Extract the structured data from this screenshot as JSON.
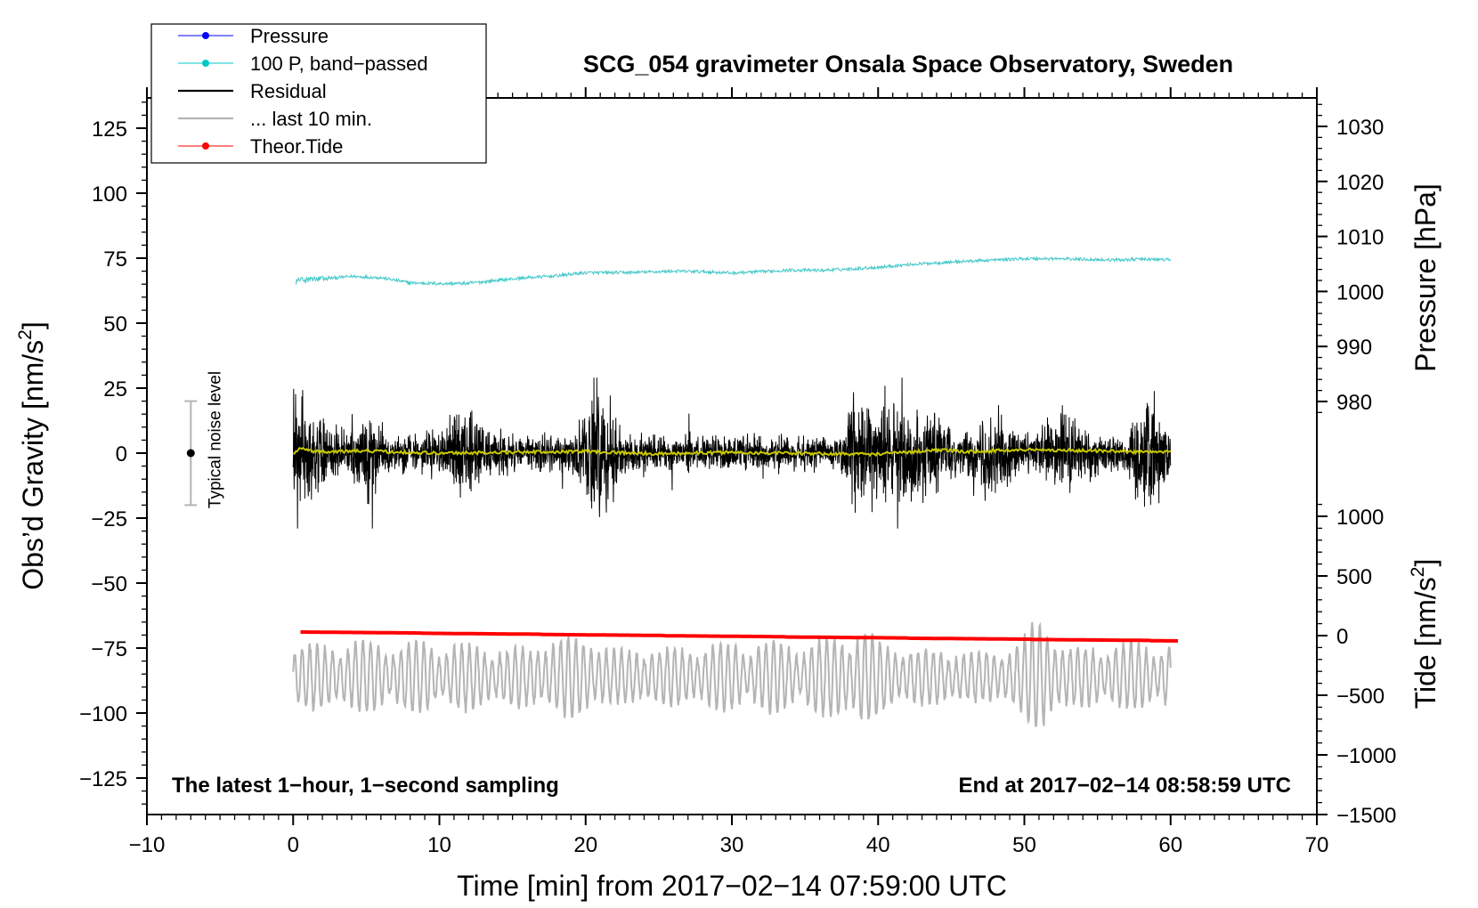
{
  "chart_data": {
    "type": "line",
    "title": "SCG_054 gravimeter Onsala Space Observatory, Sweden",
    "xlabel": "Time [min] from 2017−02−14 07:59:00 UTC",
    "ylabel_left": "Obs’d Gravity [nm/s",
    "ylabel_left_sup": "2",
    "ylabel_left_end": "]",
    "ylabel_right_pressure": "Pressure [hPa]",
    "ylabel_right_tide": "Tide [nm/s",
    "ylabel_right_tide_sup": "2",
    "ylabel_right_tide_end": "]",
    "xlim": [
      -10,
      70
    ],
    "ylim_left": [
      -140,
      140
    ],
    "pressure_range": [
      975,
      1035
    ],
    "tide_range": [
      -1500,
      1500
    ],
    "x_ticks": [
      -10,
      0,
      10,
      20,
      30,
      40,
      50,
      60,
      70
    ],
    "x_tick_labels": [
      "−10",
      "0",
      "10",
      "20",
      "30",
      "40",
      "50",
      "60",
      "70"
    ],
    "y_left_ticks": [
      125,
      100,
      75,
      50,
      25,
      0,
      -25,
      -50,
      -75,
      -100,
      -125
    ],
    "y_left_tick_labels": [
      "125",
      "100",
      "75",
      "50",
      "25",
      "0",
      "−25",
      "−50",
      "−75",
      "−100",
      "−125"
    ],
    "pressure_ticks": [
      1030,
      1020,
      1010,
      1000,
      990,
      980
    ],
    "pressure_tick_labels": [
      "1030",
      "1020",
      "1010",
      "1000",
      "990",
      "980"
    ],
    "tide_ticks": [
      1000,
      500,
      0,
      -500,
      -1000,
      -1500
    ],
    "tide_tick_labels": [
      "1000",
      "500",
      "0",
      "−500",
      "−1000",
      "−1500"
    ],
    "legend": [
      {
        "label": "Pressure",
        "color": "#0000ff",
        "marker": true
      },
      {
        "label": "100 P, band−passed",
        "color": "#00c8c8",
        "marker": true
      },
      {
        "label": "Residual",
        "color": "#000000",
        "marker": false
      },
      {
        "label": "... last 10 min.",
        "color": "#b4b4b4",
        "marker": false
      },
      {
        "label": "Theor.Tide",
        "color": "#ff0000",
        "marker": true
      }
    ],
    "annotation_left": "The latest 1−hour, 1−second sampling",
    "annotation_right": "End at 2017−02−14 08:58:59 UTC",
    "noise_label": "Typical noise level",
    "noise_level": {
      "x": -7,
      "center": 0,
      "low": -20,
      "high": 20
    },
    "series": [
      {
        "name": "100 P, band-passed",
        "color": "#40c8c8",
        "x_range": [
          0.2,
          60
        ],
        "points": [
          [
            0.2,
            66.5
          ],
          [
            2,
            67
          ],
          [
            4,
            68
          ],
          [
            6,
            67.5
          ],
          [
            8,
            65.5
          ],
          [
            10,
            65.2
          ],
          [
            12,
            65.3
          ],
          [
            14,
            66.5
          ],
          [
            16,
            67.5
          ],
          [
            18,
            68.2
          ],
          [
            20,
            69.4
          ],
          [
            22,
            69.4
          ],
          [
            24,
            69.6
          ],
          [
            26,
            70.0
          ],
          [
            28,
            69.8
          ],
          [
            30,
            69.3
          ],
          [
            32,
            69.8
          ],
          [
            34,
            70.4
          ],
          [
            36,
            70.3
          ],
          [
            38,
            70.8
          ],
          [
            40,
            71.5
          ],
          [
            42,
            72.5
          ],
          [
            44,
            73.2
          ],
          [
            46,
            73.8
          ],
          [
            48,
            74.3
          ],
          [
            50,
            74.8
          ],
          [
            52,
            74.8
          ],
          [
            54,
            74.6
          ],
          [
            56,
            74.3
          ],
          [
            58,
            74.6
          ],
          [
            60,
            74.4
          ]
        ],
        "noise_amplitude": 0.6
      },
      {
        "name": "Residual",
        "color": "#000000",
        "x_range": [
          0,
          60
        ],
        "base_amplitude": 7,
        "bursts": [
          [
            0.7,
            1.6,
            2.3
          ],
          [
            5,
            1.3,
            1.4
          ],
          [
            12,
            1.6,
            1.4
          ],
          [
            20.6,
            0.9,
            2.8
          ],
          [
            21.8,
            0.6,
            1.6
          ],
          [
            38.8,
            1.0,
            2.3
          ],
          [
            40.8,
            1.1,
            1.7
          ],
          [
            43.3,
            1.6,
            1.6
          ],
          [
            47.8,
            1.2,
            1.7
          ],
          [
            52.8,
            1.6,
            1.4
          ],
          [
            58.5,
            1.1,
            2.3
          ]
        ]
      },
      {
        "name": "Residual smoothed",
        "color": "#c8c800",
        "points": [
          [
            0,
            -0.5
          ],
          [
            0.5,
            2
          ],
          [
            1.5,
            0.5
          ],
          [
            5,
            0.8
          ],
          [
            10,
            0
          ],
          [
            15,
            0.3
          ],
          [
            20,
            0.7
          ],
          [
            25,
            -0.3
          ],
          [
            30,
            0.3
          ],
          [
            35,
            -0.2
          ],
          [
            40,
            -0.4
          ],
          [
            44,
            1.2
          ],
          [
            46,
            0.5
          ],
          [
            50,
            1.3
          ],
          [
            55,
            0.9
          ],
          [
            58,
            0.4
          ],
          [
            60,
            0.5
          ]
        ]
      },
      {
        "name": "Theor.Tide",
        "color": "#ff0000",
        "x": [
          0.5,
          60.5
        ],
        "tide_values": [
          30,
          -45
        ],
        "step_min": 8.3
      },
      {
        "name": "... last 10 min.",
        "color": "#b4b4b4",
        "x_range": [
          0,
          60
        ],
        "center_left": -86,
        "amplitude": 14,
        "bursts": [
          [
            19,
            2.0,
            0.6
          ],
          [
            38.5,
            1.5,
            0.55
          ],
          [
            51,
            1.2,
            1.2
          ]
        ]
      }
    ]
  }
}
